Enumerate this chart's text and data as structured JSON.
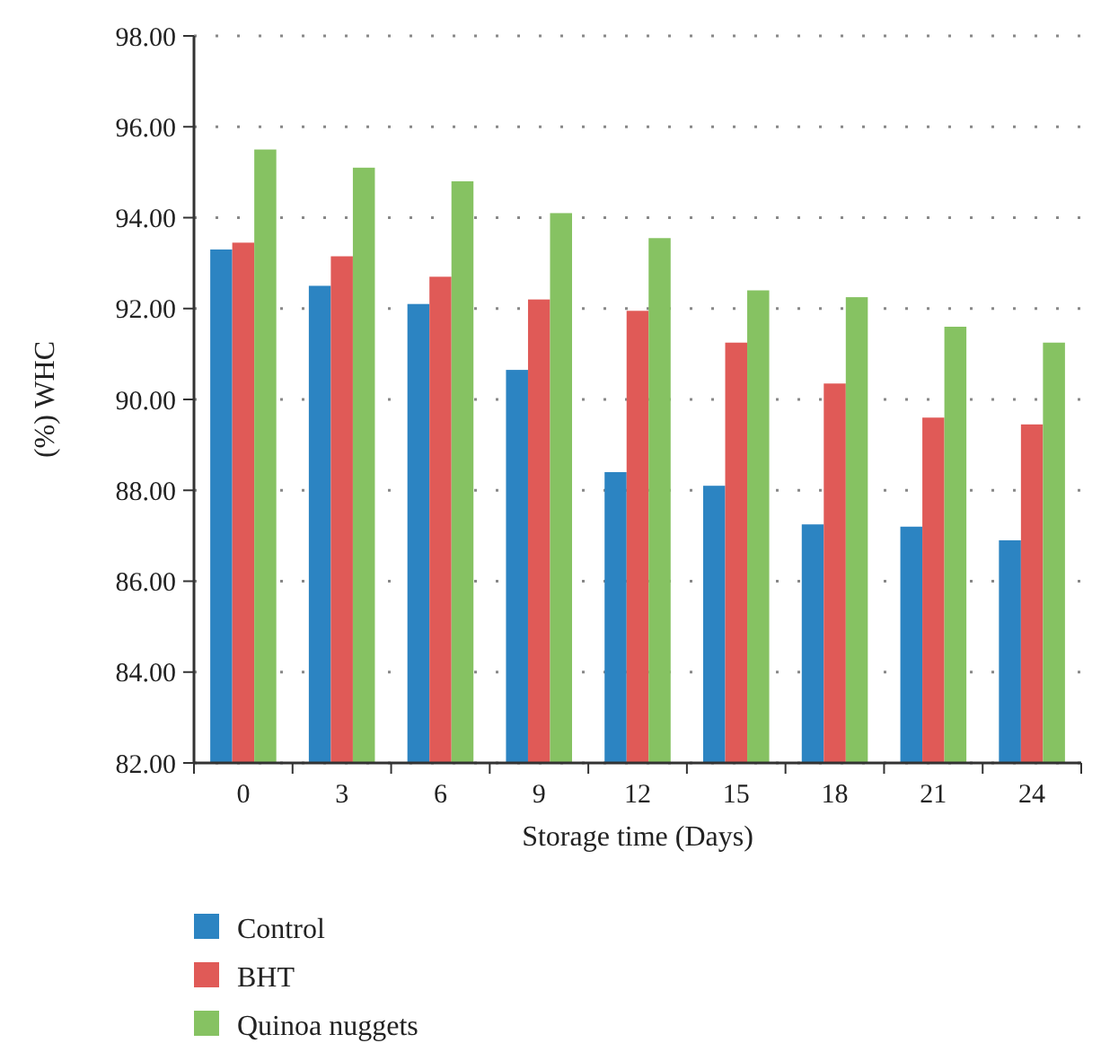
{
  "chart_data": {
    "type": "bar",
    "xlabel": "Storage time (Days)",
    "ylabel": "(%) WHC",
    "categories": [
      "0",
      "3",
      "6",
      "9",
      "12",
      "15",
      "18",
      "21",
      "24"
    ],
    "series": [
      {
        "name": "Control",
        "color": "#2c84c2",
        "values": [
          93.3,
          92.5,
          92.1,
          90.65,
          88.4,
          88.1,
          87.25,
          87.2,
          86.9
        ]
      },
      {
        "name": "BHT",
        "color": "#e05a57",
        "values": [
          93.45,
          93.15,
          92.7,
          92.2,
          91.95,
          91.25,
          90.35,
          89.6,
          89.45
        ]
      },
      {
        "name": "Quinoa nuggets",
        "color": "#86c262",
        "values": [
          95.5,
          95.1,
          94.8,
          94.1,
          93.55,
          92.4,
          92.25,
          91.6,
          91.25
        ]
      }
    ],
    "ylim": [
      82,
      98
    ],
    "yticks": [
      {
        "value": 82,
        "label": "82.00"
      },
      {
        "value": 84,
        "label": "84.00"
      },
      {
        "value": 86,
        "label": "86.00"
      },
      {
        "value": 88,
        "label": "88.00"
      },
      {
        "value": 90,
        "label": "90.00"
      },
      {
        "value": 92,
        "label": "92.00"
      },
      {
        "value": 94,
        "label": "94.00"
      },
      {
        "value": 96,
        "label": "96.00"
      },
      {
        "value": 98,
        "label": "98.00"
      }
    ],
    "grid": "y",
    "legend": "bottom left"
  }
}
